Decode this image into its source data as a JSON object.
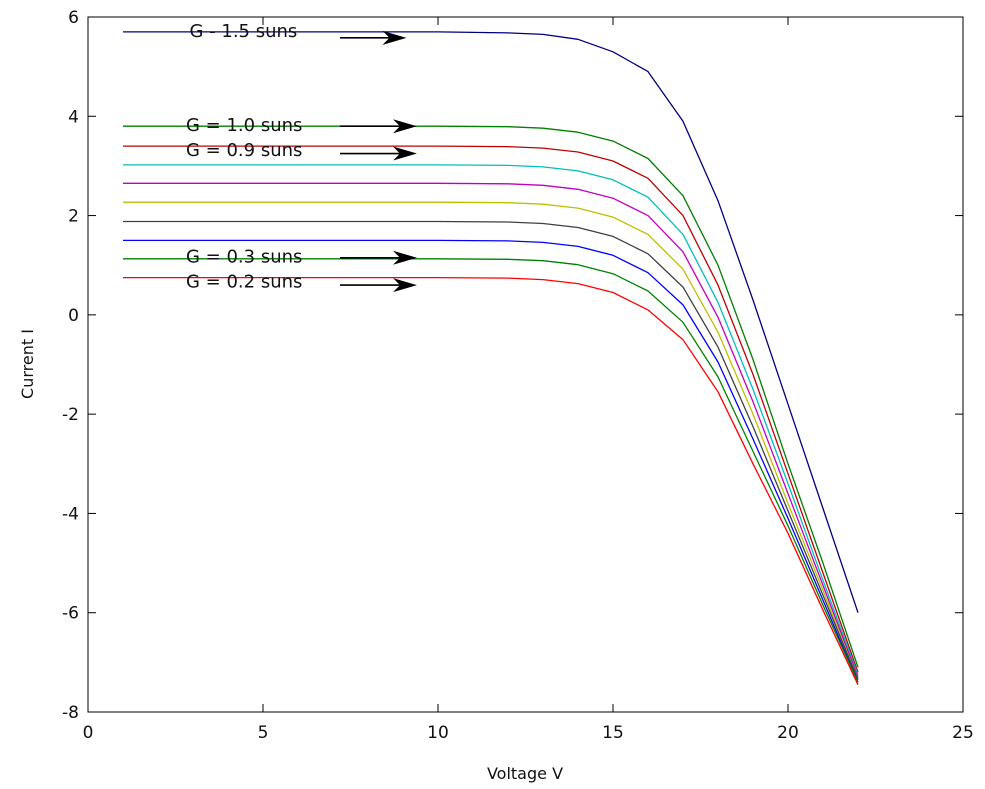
{
  "chart_data": {
    "type": "line",
    "title": "",
    "xlabel": "Voltage V",
    "ylabel": "Current I",
    "xlim": [
      0,
      25
    ],
    "ylim": [
      -8,
      6
    ],
    "xticks": [
      0,
      5,
      10,
      15,
      20,
      25
    ],
    "yticks": [
      -8,
      -6,
      -4,
      -2,
      0,
      2,
      4,
      6
    ],
    "grid": false,
    "x": [
      1,
      5,
      10,
      12,
      13,
      14,
      15,
      16,
      17,
      18,
      19,
      20,
      21,
      22
    ],
    "series": [
      {
        "color": "#00007f",
        "values": [
          5.7,
          5.7,
          5.7,
          5.68,
          5.65,
          5.55,
          5.3,
          4.9,
          3.9,
          2.3,
          0.3,
          -1.8,
          -3.9,
          -6.0
        ]
      },
      {
        "color": "#007f00",
        "values": [
          3.8,
          3.8,
          3.8,
          3.79,
          3.76,
          3.68,
          3.5,
          3.15,
          2.4,
          1.0,
          -0.9,
          -3.0,
          -5.0,
          -7.1
        ]
      },
      {
        "color": "#bf0000",
        "values": [
          3.4,
          3.4,
          3.4,
          3.39,
          3.36,
          3.28,
          3.1,
          2.75,
          2.0,
          0.6,
          -1.2,
          -3.2,
          -5.2,
          -7.2
        ]
      },
      {
        "color": "#00bfbf",
        "values": [
          3.02,
          3.02,
          3.02,
          3.01,
          2.98,
          2.9,
          2.72,
          2.37,
          1.62,
          0.25,
          -1.5,
          -3.4,
          -5.35,
          -7.25
        ]
      },
      {
        "color": "#bf00bf",
        "values": [
          2.65,
          2.65,
          2.65,
          2.64,
          2.61,
          2.53,
          2.35,
          2.0,
          1.27,
          -0.05,
          -1.75,
          -3.6,
          -5.45,
          -7.3
        ]
      },
      {
        "color": "#bfbf00",
        "values": [
          2.27,
          2.27,
          2.27,
          2.26,
          2.23,
          2.15,
          1.97,
          1.62,
          0.92,
          -0.35,
          -2.0,
          -3.8,
          -5.55,
          -7.35
        ]
      },
      {
        "color": "#404040",
        "values": [
          1.88,
          1.88,
          1.88,
          1.87,
          1.84,
          1.76,
          1.58,
          1.23,
          0.56,
          -0.65,
          -2.25,
          -3.95,
          -5.65,
          -7.35
        ]
      },
      {
        "color": "#0000ff",
        "values": [
          1.5,
          1.5,
          1.5,
          1.49,
          1.46,
          1.38,
          1.2,
          0.85,
          0.2,
          -0.95,
          -2.5,
          -4.1,
          -5.75,
          -7.4
        ]
      },
      {
        "color": "#008000",
        "values": [
          1.13,
          1.13,
          1.13,
          1.12,
          1.09,
          1.01,
          0.83,
          0.48,
          -0.15,
          -1.25,
          -2.75,
          -4.25,
          -5.85,
          -7.4
        ]
      },
      {
        "color": "#ff0000",
        "values": [
          0.75,
          0.75,
          0.75,
          0.74,
          0.71,
          0.63,
          0.45,
          0.1,
          -0.5,
          -1.55,
          -3.0,
          -4.4,
          -5.95,
          -7.45
        ]
      }
    ],
    "annotations": [
      {
        "text": "G - 1.5 suns",
        "x": 2.9,
        "y": 5.6,
        "arrow_from": 7.2,
        "arrow_to": 9.1,
        "arrow_y": 5.58
      },
      {
        "text": "G = 1.0 suns",
        "x": 2.8,
        "y": 3.7,
        "arrow_from": 7.2,
        "arrow_to": 9.4,
        "arrow_y": 3.8
      },
      {
        "text": "G = 0.9 suns",
        "x": 2.8,
        "y": 3.2,
        "arrow_from": 7.2,
        "arrow_to": 9.4,
        "arrow_y": 3.25
      },
      {
        "text": "G = 0.3 suns",
        "x": 2.8,
        "y": 1.05,
        "arrow_from": 7.2,
        "arrow_to": 9.4,
        "arrow_y": 1.15
      },
      {
        "text": "G = 0.2 suns",
        "x": 2.8,
        "y": 0.55,
        "arrow_from": 7.2,
        "arrow_to": 9.4,
        "arrow_y": 0.6
      }
    ]
  }
}
